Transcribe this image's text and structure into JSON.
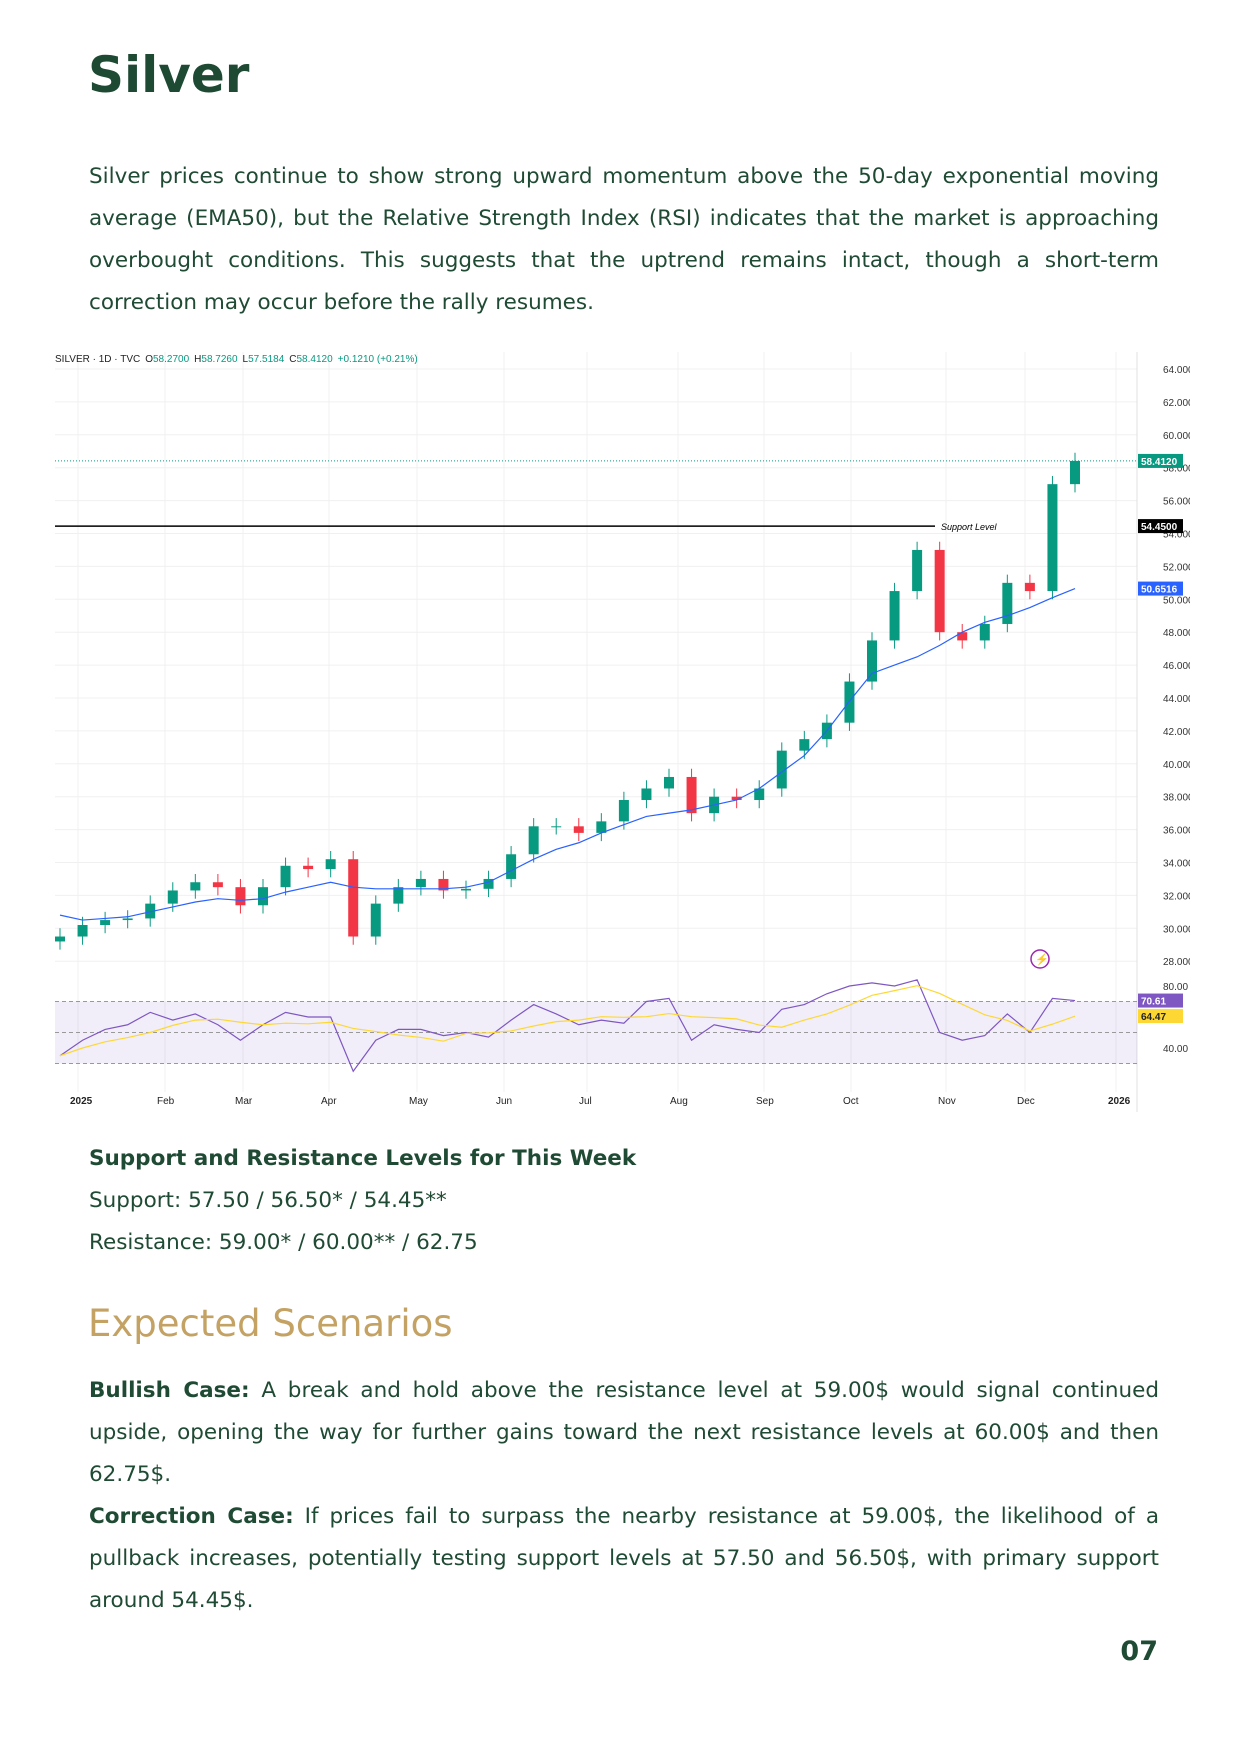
{
  "title": "Silver",
  "intro": "Silver prices continue to show strong upward momentum above the 50-day exponential moving average (EMA50), but the Relative Strength Index (RSI) indicates that the market is approaching overbought conditions. This suggests that the uptrend remains intact, though a short-term correction may occur before the rally resumes.",
  "chart_data": {
    "type": "candlestick",
    "header": {
      "symbol": "SILVER · 1D · TVC",
      "o_label": "O",
      "o": "58.2700",
      "h_label": "H",
      "h": "58.7260",
      "l_label": "L",
      "l": "57.5184",
      "c_label": "C",
      "c": "58.4120",
      "change": "+0.1210 (+0.21%)"
    },
    "ylim": [
      27,
      65
    ],
    "y_ticks": [
      "64.0000",
      "62.0000",
      "60.0000",
      "58.0000",
      "56.0000",
      "54.0000",
      "52.0000",
      "50.0000",
      "48.0000",
      "46.0000",
      "44.0000",
      "42.0000",
      "40.0000",
      "38.0000",
      "36.0000",
      "34.0000",
      "32.0000",
      "30.0000",
      "28.0000"
    ],
    "x_ticks": [
      "2025",
      "Feb",
      "Mar",
      "Apr",
      "May",
      "Jun",
      "Jul",
      "Aug",
      "Sep",
      "Oct",
      "Nov",
      "Dec",
      "2026"
    ],
    "closes": [
      29.5,
      30.2,
      30.5,
      30.6,
      31.5,
      32.3,
      32.8,
      32.5,
      31.4,
      32.5,
      33.8,
      33.6,
      34.2,
      29.5,
      31.5,
      32.5,
      33.0,
      32.3,
      32.4,
      33.0,
      34.5,
      36.2,
      36.2,
      35.8,
      36.5,
      37.8,
      38.5,
      39.2,
      37.0,
      38.0,
      37.8,
      38.5,
      40.8,
      41.5,
      42.5,
      45.0,
      47.5,
      50.5,
      53.0,
      48.0,
      47.5,
      48.5,
      51.0,
      50.5,
      57.0,
      58.412
    ],
    "ema50": [
      30.8,
      30.5,
      30.6,
      30.7,
      31.0,
      31.3,
      31.6,
      31.8,
      31.7,
      31.8,
      32.2,
      32.5,
      32.8,
      32.5,
      32.4,
      32.4,
      32.4,
      32.4,
      32.5,
      32.8,
      33.5,
      34.2,
      34.8,
      35.2,
      35.8,
      36.3,
      36.8,
      37.0,
      37.2,
      37.5,
      37.8,
      38.5,
      39.5,
      40.5,
      42.0,
      43.8,
      45.5,
      46.0,
      46.5,
      47.2,
      48.0,
      48.6,
      49.0,
      49.5,
      50.1,
      50.6516
    ],
    "last_price": "58.4120",
    "support": {
      "value": 54.45,
      "label": "Support Level",
      "price_label": "54.4500"
    },
    "ema_label": "50.6516",
    "rsi": {
      "values": [
        35,
        45,
        52,
        55,
        63,
        58,
        62,
        55,
        45,
        55,
        63,
        60,
        60,
        25,
        45,
        52,
        52,
        48,
        50,
        47,
        58,
        68,
        62,
        55,
        58,
        56,
        70,
        72,
        45,
        55,
        52,
        50,
        65,
        68,
        75,
        80,
        82,
        80,
        84,
        50,
        45,
        48,
        62,
        50,
        72,
        70.61
      ],
      "ticks": [
        "80.00",
        "40.00"
      ],
      "rsi_label": "70.61",
      "ma_label": "64.47",
      "bands": [
        30,
        50,
        70
      ]
    },
    "colors": {
      "up": "#089981",
      "down": "#f23645",
      "ema": "#2962ff",
      "rsi": "#7e57c2",
      "rsi_ma": "#fdd835",
      "support": "#000000"
    }
  },
  "levels": {
    "title": "Support and Resistance Levels for This Week",
    "support": "Support: 57.50 / 56.50* / 54.45**",
    "resistance": "Resistance: 59.00* / 60.00** / 62.75"
  },
  "scenarios": {
    "heading": "Expected Scenarios",
    "bull_label": "Bullish Case:",
    "bull": " A break and hold above the resistance level at 59.00$ would signal continued upside, opening the way for further gains toward the next resistance levels at 60.00$ and then 62.75$.",
    "corr_label": "Correction Case:",
    "corr": " If prices fail to surpass the nearby resistance at 59.00$, the likelihood of a pullback increases, potentially testing support levels at 57.50 and 56.50$, with primary support around 54.45$."
  },
  "page_number": "07"
}
